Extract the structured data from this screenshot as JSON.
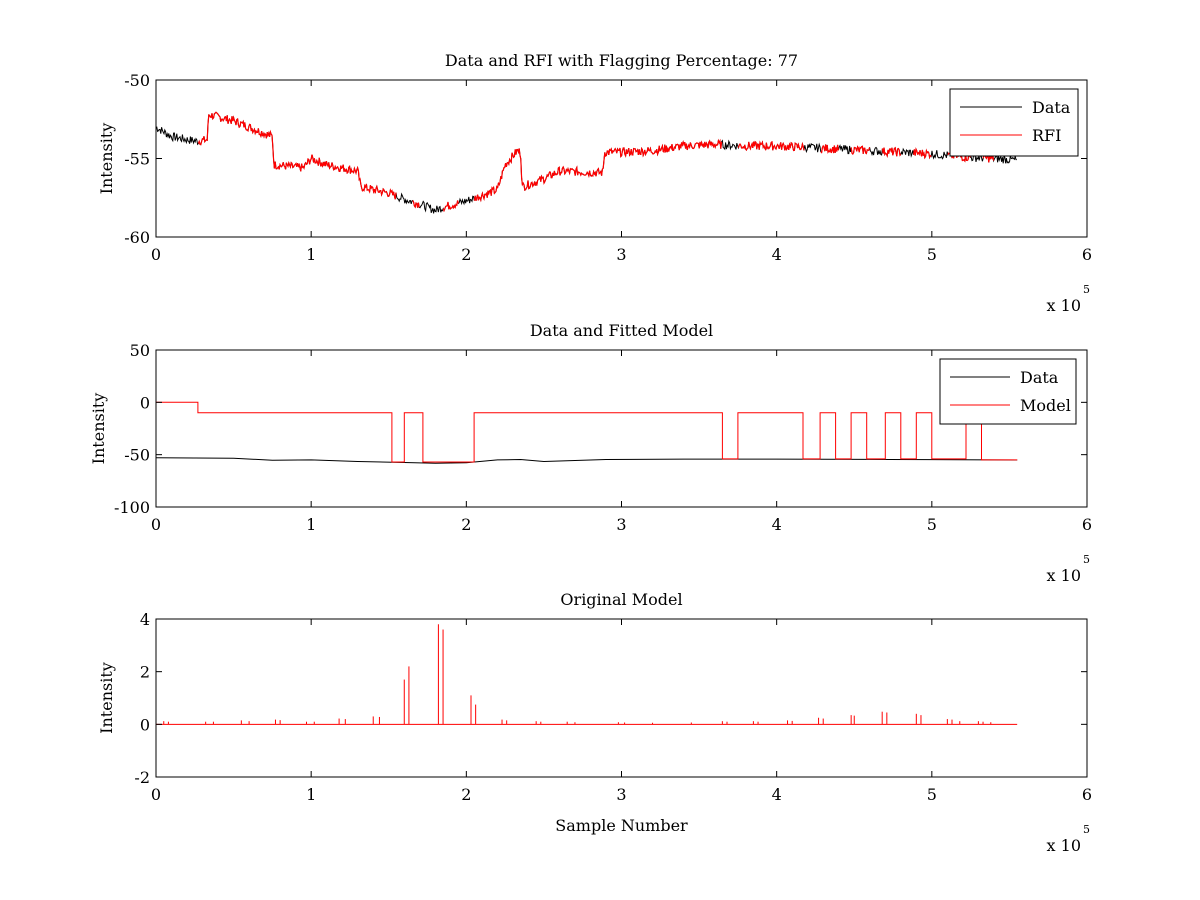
{
  "chart_data": [
    {
      "type": "line",
      "title": "Data and RFI with Flagging Percentage: 77",
      "xlabel": "",
      "ylabel": "Intensity",
      "xlim": [
        0,
        6
      ],
      "ylim": [
        -60,
        -50
      ],
      "xticks": [
        0,
        1,
        2,
        3,
        4,
        5,
        6
      ],
      "yticks": [
        -60,
        -55,
        -50
      ],
      "xtick_labels": [
        "0",
        "1",
        "2",
        "3",
        "4",
        "5",
        "6"
      ],
      "ytick_labels": [
        "-60",
        "-55",
        "-50"
      ],
      "x_exponent": {
        "base": "x 10",
        "power": "5"
      },
      "legend": {
        "position": "top-right",
        "entries": [
          "Data",
          "RFI"
        ]
      },
      "series": [
        {
          "name": "Data",
          "color": "#000000",
          "x": [
            0,
            0.1,
            0.2,
            0.27,
            0.33,
            0.34,
            0.5,
            0.75,
            0.76,
            0.95,
            1.0,
            1.1,
            1.3,
            1.32,
            1.5,
            1.6,
            1.7,
            1.8,
            1.85,
            2.0,
            2.2,
            2.25,
            2.33,
            2.35,
            2.36,
            2.5,
            2.6,
            2.85,
            2.88,
            2.89,
            3.0,
            3.2,
            3.4,
            3.6,
            3.8,
            4.0,
            4.2,
            4.4,
            4.6,
            4.8,
            5.0,
            5.2,
            5.4,
            5.55
          ],
          "y": [
            -53.0,
            -53.6,
            -53.8,
            -53.9,
            -53.8,
            -52.2,
            -52.6,
            -53.6,
            -55.4,
            -55.6,
            -55.0,
            -55.4,
            -55.8,
            -56.8,
            -57.2,
            -57.6,
            -57.9,
            -58.3,
            -58.1,
            -57.7,
            -57.0,
            -55.4,
            -54.5,
            -54.6,
            -56.8,
            -56.3,
            -55.8,
            -55.9,
            -55.9,
            -54.6,
            -54.6,
            -54.5,
            -54.2,
            -54.1,
            -54.2,
            -54.2,
            -54.3,
            -54.4,
            -54.5,
            -54.6,
            -54.7,
            -54.9,
            -55.0,
            -55.1
          ]
        },
        {
          "name": "RFI",
          "color": "#ff0000",
          "segments": [
            [
              0.27,
              1.55
            ],
            [
              1.65,
              1.7
            ],
            [
              1.85,
              1.95
            ],
            [
              2.05,
              3.65
            ],
            [
              3.75,
              4.18
            ],
            [
              4.28,
              4.4
            ],
            [
              4.48,
              4.6
            ],
            [
              4.68,
              4.8
            ],
            [
              4.88,
              5.0
            ],
            [
              5.1,
              5.25
            ],
            [
              5.33,
              5.4
            ]
          ]
        }
      ]
    },
    {
      "type": "line",
      "title": "Data and Fitted Model",
      "xlabel": "",
      "ylabel": "Intensity",
      "xlim": [
        0,
        6
      ],
      "ylim": [
        -100,
        50
      ],
      "xticks": [
        0,
        1,
        2,
        3,
        4,
        5,
        6
      ],
      "yticks": [
        -100,
        -50,
        0,
        50
      ],
      "xtick_labels": [
        "0",
        "1",
        "2",
        "3",
        "4",
        "5",
        "6"
      ],
      "ytick_labels": [
        "-100",
        "-50",
        "0",
        "50"
      ],
      "x_exponent": {
        "base": "x 10",
        "power": "5"
      },
      "legend": {
        "position": "top-right",
        "entries": [
          "Data",
          "Model"
        ]
      },
      "series": [
        {
          "name": "Data",
          "color": "#000000",
          "x": [
            0,
            0.5,
            0.75,
            1.0,
            1.3,
            1.6,
            1.8,
            2.0,
            2.2,
            2.35,
            2.5,
            2.9,
            3.4,
            4.0,
            4.6,
            5.0,
            5.55
          ],
          "y": [
            -53,
            -53.4,
            -55.4,
            -55,
            -56.5,
            -57.5,
            -58.2,
            -57.8,
            -55,
            -54.6,
            -56.5,
            -54.6,
            -54.2,
            -54.2,
            -54.5,
            -54.7,
            -55.1
          ]
        },
        {
          "name": "Model",
          "color": "#ff0000",
          "x": [
            0,
            0.27,
            0.27,
            1.52,
            1.52,
            1.6,
            1.6,
            1.72,
            1.72,
            2.05,
            2.05,
            3.65,
            3.65,
            3.75,
            3.75,
            4.17,
            4.17,
            4.28,
            4.28,
            4.38,
            4.38,
            4.48,
            4.48,
            4.58,
            4.58,
            4.7,
            4.7,
            4.8,
            4.8,
            4.9,
            4.9,
            5.0,
            5.0,
            5.22,
            5.22,
            5.32,
            5.32,
            5.55
          ],
          "y": [
            0,
            0,
            -10,
            -10,
            -57,
            -57,
            -10,
            -10,
            -57,
            -57,
            -10,
            -10,
            -54,
            -54,
            -10,
            -10,
            -54,
            -54,
            -10,
            -10,
            -54,
            -54,
            -10,
            -10,
            -54,
            -54,
            -10,
            -10,
            -54,
            -54,
            -10,
            -10,
            -54,
            -54,
            -10,
            -10,
            -55,
            -55
          ]
        }
      ]
    },
    {
      "type": "line",
      "title": "Original Model",
      "xlabel": "Sample Number",
      "ylabel": "Intensity",
      "xlim": [
        0,
        6
      ],
      "ylim": [
        -2,
        4
      ],
      "xticks": [
        0,
        1,
        2,
        3,
        4,
        5,
        6
      ],
      "yticks": [
        -2,
        0,
        2,
        4
      ],
      "xtick_labels": [
        "0",
        "1",
        "2",
        "3",
        "4",
        "5",
        "6"
      ],
      "ytick_labels": [
        "-2",
        "0",
        "2",
        "4"
      ],
      "x_exponent": {
        "base": "x 10",
        "power": "5"
      },
      "series": [
        {
          "name": "",
          "color": "#ff0000",
          "baseline": 0,
          "spikes": [
            [
              0.05,
              0.12
            ],
            [
              0.08,
              0.1
            ],
            [
              0.32,
              0.1
            ],
            [
              0.37,
              0.1
            ],
            [
              0.55,
              0.15
            ],
            [
              0.6,
              0.12
            ],
            [
              0.77,
              0.18
            ],
            [
              0.8,
              0.16
            ],
            [
              0.97,
              0.1
            ],
            [
              1.02,
              0.1
            ],
            [
              1.18,
              0.22
            ],
            [
              1.22,
              0.2
            ],
            [
              1.4,
              0.3
            ],
            [
              1.44,
              0.28
            ],
            [
              1.6,
              1.7
            ],
            [
              1.63,
              2.2
            ],
            [
              1.82,
              3.8
            ],
            [
              1.85,
              3.6
            ],
            [
              2.03,
              1.1
            ],
            [
              2.06,
              0.75
            ],
            [
              2.23,
              0.18
            ],
            [
              2.26,
              0.15
            ],
            [
              2.45,
              0.12
            ],
            [
              2.48,
              0.1
            ],
            [
              2.65,
              0.1
            ],
            [
              2.7,
              0.08
            ],
            [
              2.98,
              0.08
            ],
            [
              3.02,
              0.07
            ],
            [
              3.2,
              0.06
            ],
            [
              3.45,
              0.07
            ],
            [
              3.65,
              0.12
            ],
            [
              3.68,
              0.1
            ],
            [
              3.85,
              0.12
            ],
            [
              3.88,
              0.1
            ],
            [
              4.07,
              0.15
            ],
            [
              4.1,
              0.13
            ],
            [
              4.27,
              0.25
            ],
            [
              4.3,
              0.22
            ],
            [
              4.48,
              0.35
            ],
            [
              4.5,
              0.33
            ],
            [
              4.68,
              0.48
            ],
            [
              4.71,
              0.45
            ],
            [
              4.9,
              0.4
            ],
            [
              4.93,
              0.35
            ],
            [
              5.1,
              0.2
            ],
            [
              5.13,
              0.18
            ],
            [
              5.18,
              0.12
            ],
            [
              5.3,
              0.12
            ],
            [
              5.33,
              0.1
            ],
            [
              5.38,
              0.08
            ]
          ]
        }
      ]
    }
  ]
}
